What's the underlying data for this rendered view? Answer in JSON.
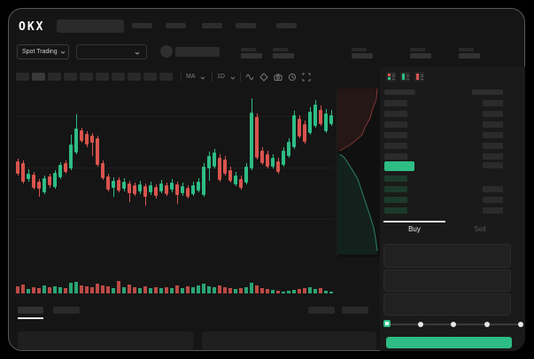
{
  "app": {
    "logo_text": "OKX"
  },
  "colors": {
    "up": "#2ebd85",
    "down": "#d9544d",
    "accent_green": "#2ebd85",
    "window_bg": "#151515",
    "right_panel_bg": "#1a1a1a",
    "placeholder_bar": "#2b2b2b"
  },
  "header": {
    "nav_item_count": 5
  },
  "market_bar": {
    "pair_selector_label": "Spot Trading",
    "stat_pair_count": 5
  },
  "chart_toolbar": {
    "timeframe_count": 10,
    "active_timeframe_index": 1,
    "dropdown1_label": "MA",
    "dropdown2_label": "1D",
    "icons": [
      "wave-icon",
      "draw-icon",
      "camera-icon",
      "clock-icon",
      "fullscreen-icon"
    ]
  },
  "orderbook": {
    "view_modes": [
      "combined-book-icon",
      "bids-book-icon",
      "asks-book-icon"
    ],
    "has_header_row": true,
    "ask_row_count": 6,
    "bid_row_count": 4,
    "bid_rows_with_amount": 3,
    "last_price_highlight_color": "#2ebd85"
  },
  "trade_panel": {
    "tabs": [
      {
        "label": "Buy",
        "active": true
      },
      {
        "label": "Sell",
        "active": false
      }
    ],
    "input_count": 3,
    "slider": {
      "stop_count": 5,
      "selected_index": 0
    },
    "submit_button_color": "#2ebd85"
  },
  "bottom_bar": {
    "tab_count": 2,
    "active_tab_index": 0,
    "right_button_count": 2,
    "panel_count": 2
  },
  "chart_data": {
    "type": "candlestick",
    "title": "",
    "bar_count": 60,
    "y_axis": "price, relative pts (0 = chart bottom, 190 = chart top)",
    "x_axis": "time, 60 bars",
    "gridline_count": 3,
    "up_color": "#2ebd85",
    "down_color": "#d9544d",
    "candles": [
      [
        108,
        111,
        92,
        94
      ],
      [
        106,
        109,
        83,
        85
      ],
      [
        88,
        99,
        85,
        94
      ],
      [
        93,
        96,
        76,
        78
      ],
      [
        85,
        88,
        68,
        77
      ],
      [
        73,
        92,
        71,
        89
      ],
      [
        91,
        94,
        78,
        81
      ],
      [
        79,
        98,
        77,
        95
      ],
      [
        90,
        107,
        88,
        104
      ],
      [
        106,
        109,
        94,
        96
      ],
      [
        100,
        138,
        98,
        127
      ],
      [
        118,
        161,
        116,
        145
      ],
      [
        143,
        146,
        129,
        131
      ],
      [
        139,
        142,
        124,
        127
      ],
      [
        137,
        140,
        114,
        129
      ],
      [
        134,
        137,
        102,
        104
      ],
      [
        106,
        109,
        87,
        89
      ],
      [
        91,
        94,
        74,
        76
      ],
      [
        78,
        90,
        68,
        86
      ],
      [
        87,
        90,
        73,
        75
      ],
      [
        77,
        89,
        74,
        85
      ],
      [
        83,
        86,
        62,
        72
      ],
      [
        81,
        84,
        69,
        71
      ],
      [
        74,
        86,
        71,
        82
      ],
      [
        80,
        83,
        58,
        68
      ],
      [
        73,
        85,
        70,
        81
      ],
      [
        79,
        82,
        66,
        69
      ],
      [
        74,
        87,
        72,
        83
      ],
      [
        81,
        84,
        69,
        71
      ],
      [
        76,
        88,
        73,
        84
      ],
      [
        82,
        85,
        60,
        70
      ],
      [
        72,
        84,
        69,
        80
      ],
      [
        78,
        81,
        66,
        68
      ],
      [
        71,
        85,
        69,
        81
      ],
      [
        75,
        89,
        73,
        85
      ],
      [
        70,
        106,
        68,
        102
      ],
      [
        100,
        119,
        86,
        114
      ],
      [
        102,
        122,
        100,
        118
      ],
      [
        112,
        116,
        85,
        87
      ],
      [
        110,
        114,
        92,
        94
      ],
      [
        98,
        102,
        84,
        86
      ],
      [
        82,
        96,
        80,
        92
      ],
      [
        88,
        92,
        76,
        78
      ],
      [
        84,
        106,
        82,
        102
      ],
      [
        100,
        179,
        98,
        163
      ],
      [
        158,
        162,
        110,
        112
      ],
      [
        120,
        124,
        104,
        106
      ],
      [
        116,
        120,
        100,
        102
      ],
      [
        102,
        116,
        100,
        112
      ],
      [
        108,
        112,
        94,
        96
      ],
      [
        104,
        124,
        102,
        120
      ],
      [
        114,
        134,
        112,
        130
      ],
      [
        124,
        165,
        122,
        160
      ],
      [
        156,
        160,
        134,
        136
      ],
      [
        150,
        154,
        128,
        130
      ],
      [
        140,
        169,
        138,
        164
      ],
      [
        148,
        177,
        146,
        172
      ],
      [
        166,
        171,
        148,
        150
      ],
      [
        142,
        167,
        140,
        162
      ],
      [
        150,
        166,
        148,
        160
      ]
    ],
    "volume": [
      8,
      10,
      5,
      7,
      6,
      9,
      7,
      8,
      7,
      6,
      12,
      13,
      9,
      8,
      7,
      11,
      9,
      8,
      6,
      14,
      7,
      10,
      7,
      6,
      8,
      6,
      7,
      6,
      7,
      6,
      9,
      6,
      8,
      7,
      9,
      11,
      8,
      7,
      9,
      7,
      6,
      5,
      6,
      7,
      12,
      9,
      6,
      5,
      4,
      3,
      2,
      3,
      4,
      5,
      6,
      7,
      5,
      6,
      3,
      2
    ],
    "depth": {
      "asks_curve": [
        [
          45,
          0
        ],
        [
          44,
          12
        ],
        [
          40,
          22
        ],
        [
          37,
          33
        ],
        [
          31,
          44
        ],
        [
          28,
          52
        ],
        [
          21,
          58
        ],
        [
          15,
          63
        ],
        [
          8,
          67
        ],
        [
          3,
          70
        ]
      ],
      "bids_curve": [
        [
          3,
          74
        ],
        [
          8,
          78
        ],
        [
          12,
          84
        ],
        [
          17,
          92
        ],
        [
          23,
          102
        ],
        [
          27,
          114
        ],
        [
          32,
          129
        ],
        [
          37,
          144
        ],
        [
          41,
          157
        ],
        [
          43,
          168
        ],
        [
          45,
          183
        ]
      ]
    }
  }
}
